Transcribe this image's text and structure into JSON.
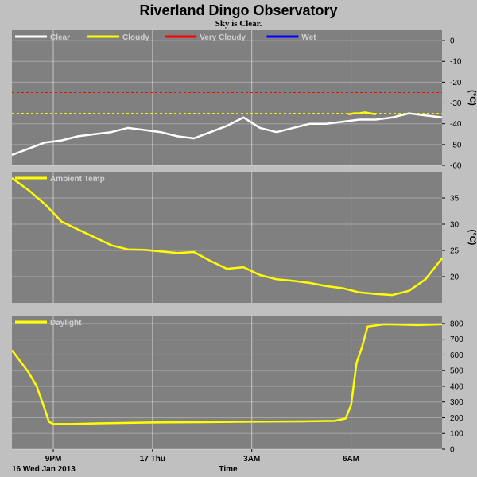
{
  "page": {
    "title": "Riverland Dingo Observatory",
    "subtitle": "Sky is Clear."
  },
  "x_axis": {
    "label": "Time",
    "date_label": "16 Wed Jan 2013",
    "start": "2013-01-16T19:45",
    "end": "2013-01-17T08:45",
    "ticks": [
      {
        "time": "2013-01-16T21:00",
        "label": "9PM"
      },
      {
        "time": "2013-01-17T00:00",
        "label": "17 Thu"
      },
      {
        "time": "2013-01-17T03:00",
        "label": "3AM"
      },
      {
        "time": "2013-01-17T06:00",
        "label": "6AM"
      }
    ]
  },
  "colors": {
    "plot_bg": "#808080",
    "page_bg": "#c0c0c0",
    "grid": "#ffffff",
    "legend_text": "#d0d0d0",
    "clear": "#ffffff",
    "cloudy": "#ffff00",
    "very_cloudy": "#ff0000",
    "wet": "#0000ff"
  },
  "chart_data": [
    {
      "type": "line",
      "name": "sky",
      "ylabel": "(°C)",
      "ylim": [
        -60,
        5
      ],
      "yticks": [
        0,
        -10,
        -20,
        -30,
        -40,
        -50,
        -60
      ],
      "grid": true,
      "legend": [
        {
          "label": "Clear",
          "color": "#ffffff"
        },
        {
          "label": "Cloudy",
          "color": "#ffff00"
        },
        {
          "label": "Very Cloudy",
          "color": "#ff0000"
        },
        {
          "label": "Wet",
          "color": "#0000ff"
        }
      ],
      "thresholds": [
        {
          "label": "Very Cloudy",
          "value": -25,
          "color": "#ff0000"
        },
        {
          "label": "Cloudy",
          "value": -35,
          "color": "#ffff00"
        }
      ],
      "series": [
        {
          "label": "Clear",
          "color": "#ffffff",
          "x": [
            "2013-01-16T19:45",
            "2013-01-16T20:15",
            "2013-01-16T20:45",
            "2013-01-16T21:15",
            "2013-01-16T21:45",
            "2013-01-16T22:15",
            "2013-01-16T22:45",
            "2013-01-16T23:15",
            "2013-01-16T23:45",
            "2013-01-17T00:15",
            "2013-01-17T00:45",
            "2013-01-17T01:15",
            "2013-01-17T01:45",
            "2013-01-17T02:15",
            "2013-01-17T02:45",
            "2013-01-17T03:15",
            "2013-01-17T03:45",
            "2013-01-17T04:15",
            "2013-01-17T04:45",
            "2013-01-17T05:15",
            "2013-01-17T05:45",
            "2013-01-17T06:15",
            "2013-01-17T06:45",
            "2013-01-17T07:15",
            "2013-01-17T07:45",
            "2013-01-17T08:15",
            "2013-01-17T08:45"
          ],
          "y": [
            -55,
            -52,
            -49,
            -48,
            -46,
            -45,
            -44,
            -42,
            -43,
            -44,
            -46,
            -47,
            -44,
            -41,
            -37,
            -42,
            -44,
            -42,
            -40,
            -40,
            -39,
            -38,
            -38,
            -37,
            -35,
            -36,
            -37
          ]
        },
        {
          "label": "Cloudy",
          "color": "#ffff00",
          "x": [
            "2013-01-17T05:55",
            "2013-01-17T06:05",
            "2013-01-17T06:15",
            "2013-01-17T06:25",
            "2013-01-17T06:35",
            "2013-01-17T06:45"
          ],
          "y": [
            -35.5,
            -35,
            -35,
            -34.5,
            -35,
            -35.5
          ]
        }
      ]
    },
    {
      "type": "line",
      "name": "ambient",
      "ylabel": "(°C)",
      "ylim": [
        15,
        40
      ],
      "yticks": [
        35,
        30,
        25,
        20
      ],
      "grid": true,
      "legend": [
        {
          "label": "Ambient Temp",
          "color": "#ffff00"
        }
      ],
      "series": [
        {
          "label": "Ambient Temp",
          "color": "#ffff00",
          "x": [
            "2013-01-16T19:45",
            "2013-01-16T20:15",
            "2013-01-16T20:45",
            "2013-01-16T21:15",
            "2013-01-16T21:45",
            "2013-01-16T22:15",
            "2013-01-16T22:45",
            "2013-01-16T23:15",
            "2013-01-16T23:45",
            "2013-01-17T00:15",
            "2013-01-17T00:45",
            "2013-01-17T01:15",
            "2013-01-17T01:45",
            "2013-01-17T02:15",
            "2013-01-17T02:45",
            "2013-01-17T03:15",
            "2013-01-17T03:45",
            "2013-01-17T04:15",
            "2013-01-17T04:45",
            "2013-01-17T05:15",
            "2013-01-17T05:45",
            "2013-01-17T06:15",
            "2013-01-17T06:45",
            "2013-01-17T07:15",
            "2013-01-17T07:45",
            "2013-01-17T08:15",
            "2013-01-17T08:45"
          ],
          "y": [
            38.8,
            36.5,
            33.8,
            30.5,
            29,
            27.5,
            26,
            25.2,
            25.1,
            24.8,
            24.5,
            24.7,
            23,
            21.5,
            21.8,
            20.3,
            19.5,
            19.2,
            18.8,
            18.2,
            17.8,
            17,
            16.7,
            16.5,
            17.3,
            19.5,
            23.5
          ]
        }
      ]
    },
    {
      "type": "line",
      "name": "daylight",
      "ylabel": "",
      "ylim": [
        0,
        850
      ],
      "yticks": [
        800,
        700,
        600,
        500,
        400,
        300,
        200,
        100,
        0
      ],
      "grid": true,
      "legend": [
        {
          "label": "Daylight",
          "color": "#ffff00"
        }
      ],
      "series": [
        {
          "label": "Daylight",
          "color": "#ffff00",
          "x": [
            "2013-01-16T19:45",
            "2013-01-16T20:00",
            "2013-01-16T20:15",
            "2013-01-16T20:30",
            "2013-01-16T20:45",
            "2013-01-16T20:52",
            "2013-01-16T21:00",
            "2013-01-16T21:30",
            "2013-01-16T22:30",
            "2013-01-17T00:00",
            "2013-01-17T01:30",
            "2013-01-17T03:00",
            "2013-01-17T04:30",
            "2013-01-17T05:30",
            "2013-01-17T05:50",
            "2013-01-17T06:00",
            "2013-01-17T06:10",
            "2013-01-17T06:20",
            "2013-01-17T06:30",
            "2013-01-17T07:00",
            "2013-01-17T07:30",
            "2013-01-17T08:00",
            "2013-01-17T08:45"
          ],
          "y": [
            630,
            560,
            490,
            400,
            250,
            175,
            160,
            160,
            165,
            170,
            172,
            175,
            177,
            180,
            195,
            280,
            550,
            650,
            780,
            795,
            793,
            790,
            795
          ]
        }
      ]
    }
  ]
}
